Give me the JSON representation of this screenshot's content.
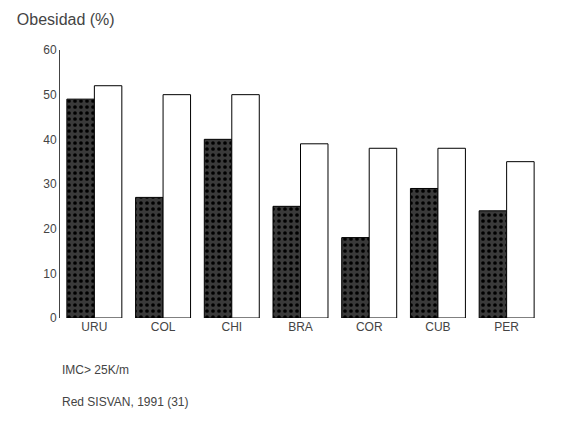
{
  "chart_data": {
    "type": "bar",
    "title": "Obesidad (%)",
    "categories": [
      "URU",
      "COL",
      "CHI",
      "BRA",
      "COR",
      "CUB",
      "PER"
    ],
    "series": [
      {
        "color": "#3a3a3a",
        "values": [
          49,
          27,
          40,
          25,
          18,
          29,
          24
        ]
      },
      {
        "color": "#ffffff",
        "values": [
          52,
          50,
          50,
          39,
          38,
          38,
          35
        ]
      }
    ],
    "ylim": [
      0,
      60
    ],
    "yticks": [
      0,
      10,
      20,
      30,
      40,
      50,
      60
    ],
    "grid": false,
    "annotations": [
      "IMC> 25K/m",
      "Red SISVAN, 1991 (31)"
    ]
  }
}
